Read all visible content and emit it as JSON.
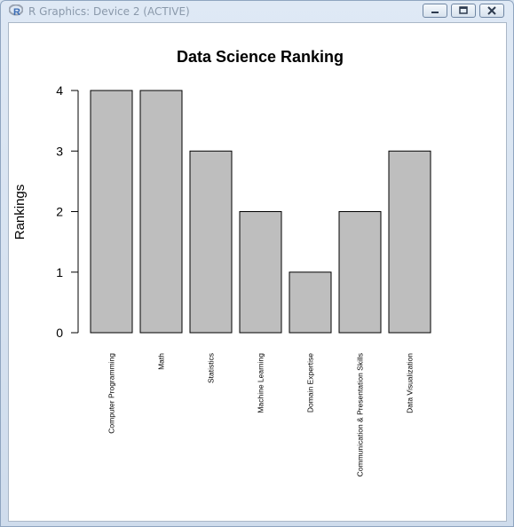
{
  "window": {
    "title": "R Graphics: Device 2 (ACTIVE)",
    "icon": "r-logo-icon",
    "buttons": [
      "minimize-icon",
      "maximize-icon",
      "close-icon"
    ]
  },
  "chart_data": {
    "type": "bar",
    "title": "Data Science Ranking",
    "xlabel": "",
    "ylabel": "Rankings",
    "categories": [
      "Computer Programming",
      "Math",
      "Statistics",
      "Machine Learning",
      "Domain Expertise",
      "Communication & Presentation Skills",
      "Data Visualization"
    ],
    "values": [
      4,
      4,
      3,
      2,
      1,
      2,
      3
    ],
    "ylim": [
      0,
      4
    ],
    "yticks": [
      0,
      1,
      2,
      3,
      4
    ],
    "grid": false,
    "legend": "none",
    "bar_color": "#bebebe",
    "bar_border": "#000000"
  }
}
